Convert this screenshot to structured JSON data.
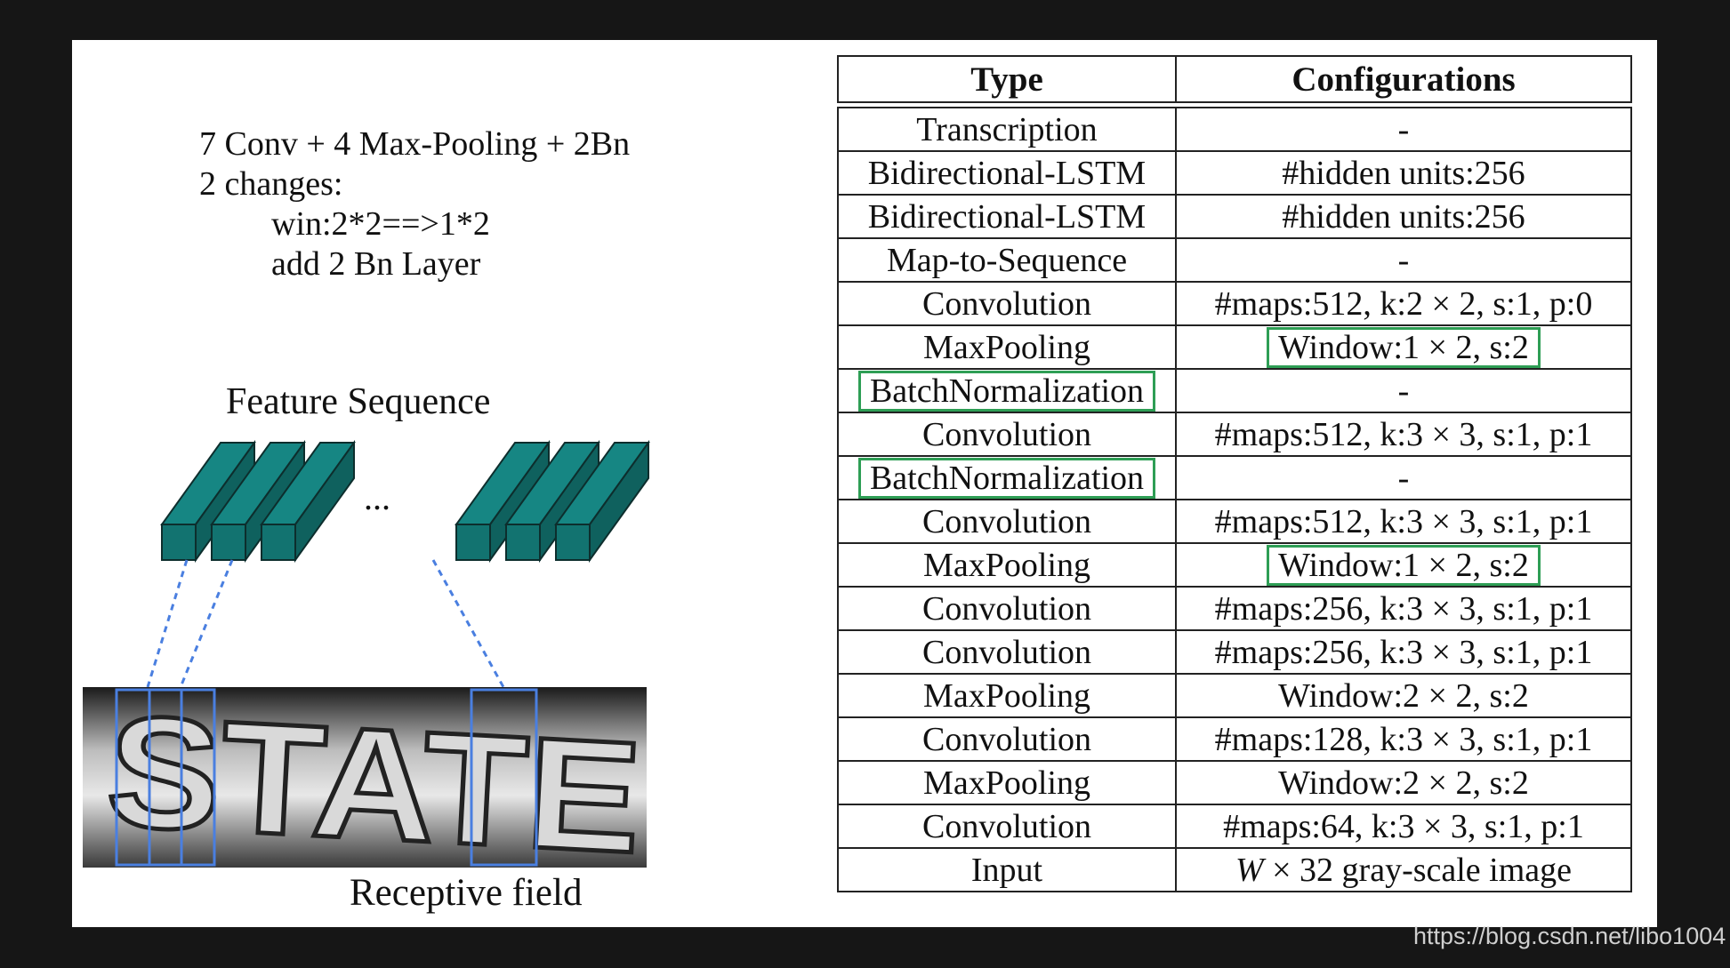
{
  "notes": {
    "line1": "7 Conv + 4 Max-Pooling + 2Bn",
    "line2": "2 changes:",
    "line3": "win:2*2==>1*2",
    "line4": "add 2 Bn Layer"
  },
  "diagram": {
    "feature_title": "Feature Sequence",
    "ellipsis": "...",
    "image_text": "STATE",
    "receptive_label": "Receptive field",
    "colors": {
      "block": "#127370",
      "block_top": "#168683",
      "link": "#4a7fe0",
      "field_box": "#4a7fe0"
    }
  },
  "table": {
    "headers": [
      "Type",
      "Configurations"
    ],
    "rows": [
      {
        "type": "Transcription",
        "config": "-",
        "type_boxed": false,
        "config_boxed": false
      },
      {
        "type": "Bidirectional-LSTM",
        "config": "#hidden units:256",
        "type_boxed": false,
        "config_boxed": false
      },
      {
        "type": "Bidirectional-LSTM",
        "config": "#hidden units:256",
        "type_boxed": false,
        "config_boxed": false
      },
      {
        "type": "Map-to-Sequence",
        "config": "-",
        "type_boxed": false,
        "config_boxed": false
      },
      {
        "type": "Convolution",
        "config": "#maps:512, k:2 × 2, s:1, p:0",
        "type_boxed": false,
        "config_boxed": false
      },
      {
        "type": "MaxPooling",
        "config": "Window:1 × 2, s:2",
        "type_boxed": false,
        "config_boxed": true
      },
      {
        "type": "BatchNormalization",
        "config": "-",
        "type_boxed": true,
        "config_boxed": false
      },
      {
        "type": "Convolution",
        "config": "#maps:512, k:3 × 3, s:1, p:1",
        "type_boxed": false,
        "config_boxed": false
      },
      {
        "type": "BatchNormalization",
        "config": "-",
        "type_boxed": true,
        "config_boxed": false
      },
      {
        "type": "Convolution",
        "config": "#maps:512, k:3 × 3, s:1, p:1",
        "type_boxed": false,
        "config_boxed": false
      },
      {
        "type": "MaxPooling",
        "config": "Window:1 × 2, s:2",
        "type_boxed": false,
        "config_boxed": true
      },
      {
        "type": "Convolution",
        "config": "#maps:256, k:3 × 3, s:1, p:1",
        "type_boxed": false,
        "config_boxed": false
      },
      {
        "type": "Convolution",
        "config": "#maps:256, k:3 × 3, s:1, p:1",
        "type_boxed": false,
        "config_boxed": false
      },
      {
        "type": "MaxPooling",
        "config": "Window:2 × 2, s:2",
        "type_boxed": false,
        "config_boxed": false
      },
      {
        "type": "Convolution",
        "config": "#maps:128, k:3 × 3, s:1, p:1",
        "type_boxed": false,
        "config_boxed": false
      },
      {
        "type": "MaxPooling",
        "config": "Window:2 × 2, s:2",
        "type_boxed": false,
        "config_boxed": false
      },
      {
        "type": "Convolution",
        "config": "#maps:64, k:3 × 3, s:1, p:1",
        "type_boxed": false,
        "config_boxed": false
      },
      {
        "type": "Input",
        "config_italic": "W",
        "config": "× 32 gray-scale image",
        "type_boxed": false,
        "config_boxed": false
      }
    ],
    "highlight_color": "#2e9e55"
  },
  "watermark": "https://blog.csdn.net/libo1004"
}
